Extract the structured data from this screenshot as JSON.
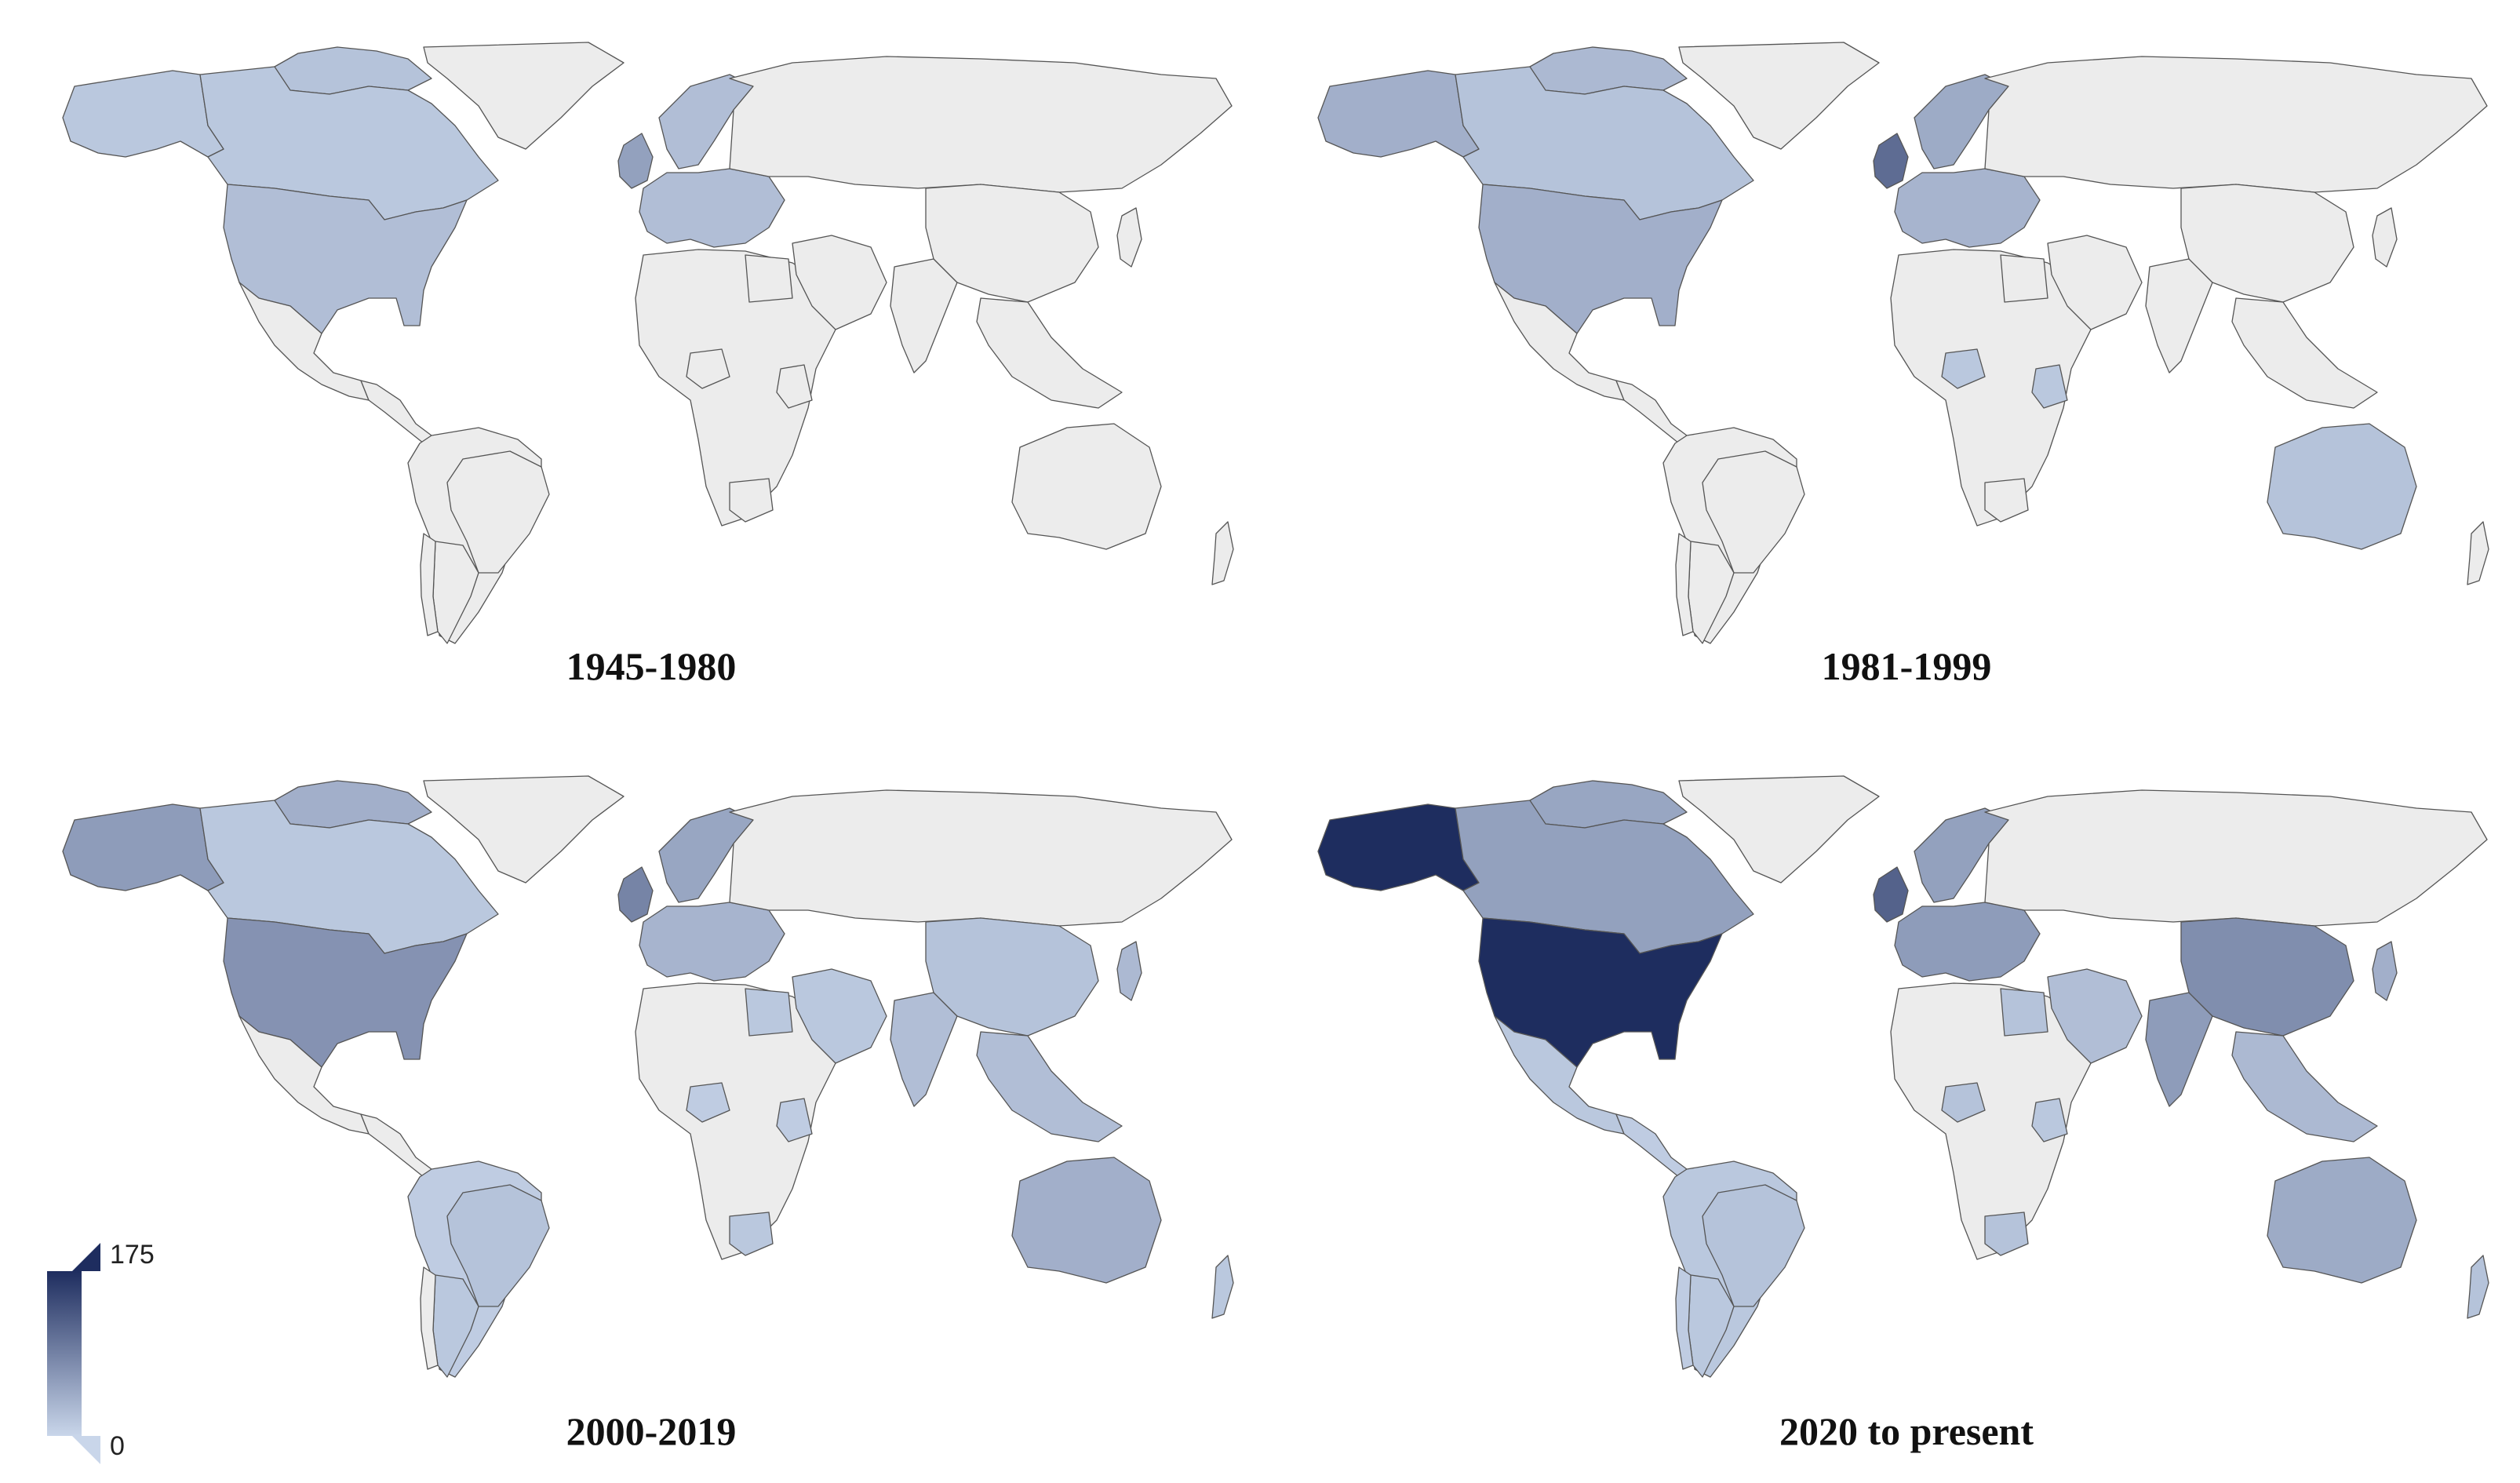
{
  "colors": {
    "no_data": "#ececec",
    "border": "#555555",
    "ramp_low": "#c9d6ea",
    "ramp_high": "#1e2d5f"
  },
  "legend": {
    "max_label": "175",
    "min_label": "0",
    "min": 0,
    "max": 175
  },
  "panels": [
    {
      "title": "1945-1980",
      "values": {
        "usa": 25,
        "canada": 15,
        "alaska": 15,
        "greenland": 0,
        "arctic": 20,
        "mexico": 0,
        "central_america": 0,
        "south_america": 0,
        "brazil": 0,
        "argentina": 0,
        "chile": 0,
        "uk": 55,
        "europe": 25,
        "scandinavia": 25,
        "russia": 0,
        "africa": 0,
        "nigeria": 0,
        "kenya": 0,
        "south_africa": 0,
        "egypt": 0,
        "middle_east": 0,
        "india": 0,
        "china": 0,
        "southeast_asia": 0,
        "japan": 0,
        "australia": 0,
        "new_zealand": 0
      }
    },
    {
      "title": "1981-1999",
      "values": {
        "usa": 40,
        "canada": 20,
        "alaska": 40,
        "greenland": 0,
        "arctic": 30,
        "mexico": 0,
        "central_america": 0,
        "south_america": 0,
        "brazil": 0,
        "argentina": 0,
        "chile": 0,
        "uk": 110,
        "europe": 35,
        "scandinavia": 45,
        "russia": 0,
        "africa": 0,
        "nigeria": 15,
        "kenya": 15,
        "south_africa": 0,
        "egypt": 0,
        "middle_east": 0,
        "india": 0,
        "china": 0,
        "southeast_asia": 0,
        "japan": 0,
        "australia": 20,
        "new_zealand": 0
      }
    },
    {
      "title": "2000-2019",
      "values": {
        "usa": 70,
        "canada": 15,
        "alaska": 60,
        "greenland": 0,
        "arctic": 40,
        "mexico": 0,
        "central_america": 0,
        "south_america": 10,
        "brazil": 20,
        "argentina": 15,
        "chile": 0,
        "uk": 85,
        "europe": 35,
        "scandinavia": 50,
        "russia": 0,
        "africa": 0,
        "nigeria": 10,
        "kenya": 10,
        "south_africa": 15,
        "egypt": 15,
        "middle_east": 15,
        "india": 25,
        "china": 20,
        "southeast_asia": 25,
        "japan": 30,
        "australia": 40,
        "new_zealand": 15
      }
    },
    {
      "title": "2020 to present",
      "values": {
        "usa": 175,
        "canada": 55,
        "alaska": 175,
        "greenland": 0,
        "arctic": 50,
        "mexico": 15,
        "central_america": 10,
        "south_america": 15,
        "brazil": 20,
        "argentina": 15,
        "chile": 10,
        "uk": 120,
        "europe": 60,
        "scandinavia": 55,
        "russia": 0,
        "africa": 0,
        "nigeria": 20,
        "kenya": 15,
        "south_africa": 20,
        "egypt": 20,
        "middle_east": 25,
        "india": 60,
        "china": 75,
        "southeast_asia": 30,
        "japan": 40,
        "australia": 45,
        "new_zealand": 20
      }
    }
  ]
}
